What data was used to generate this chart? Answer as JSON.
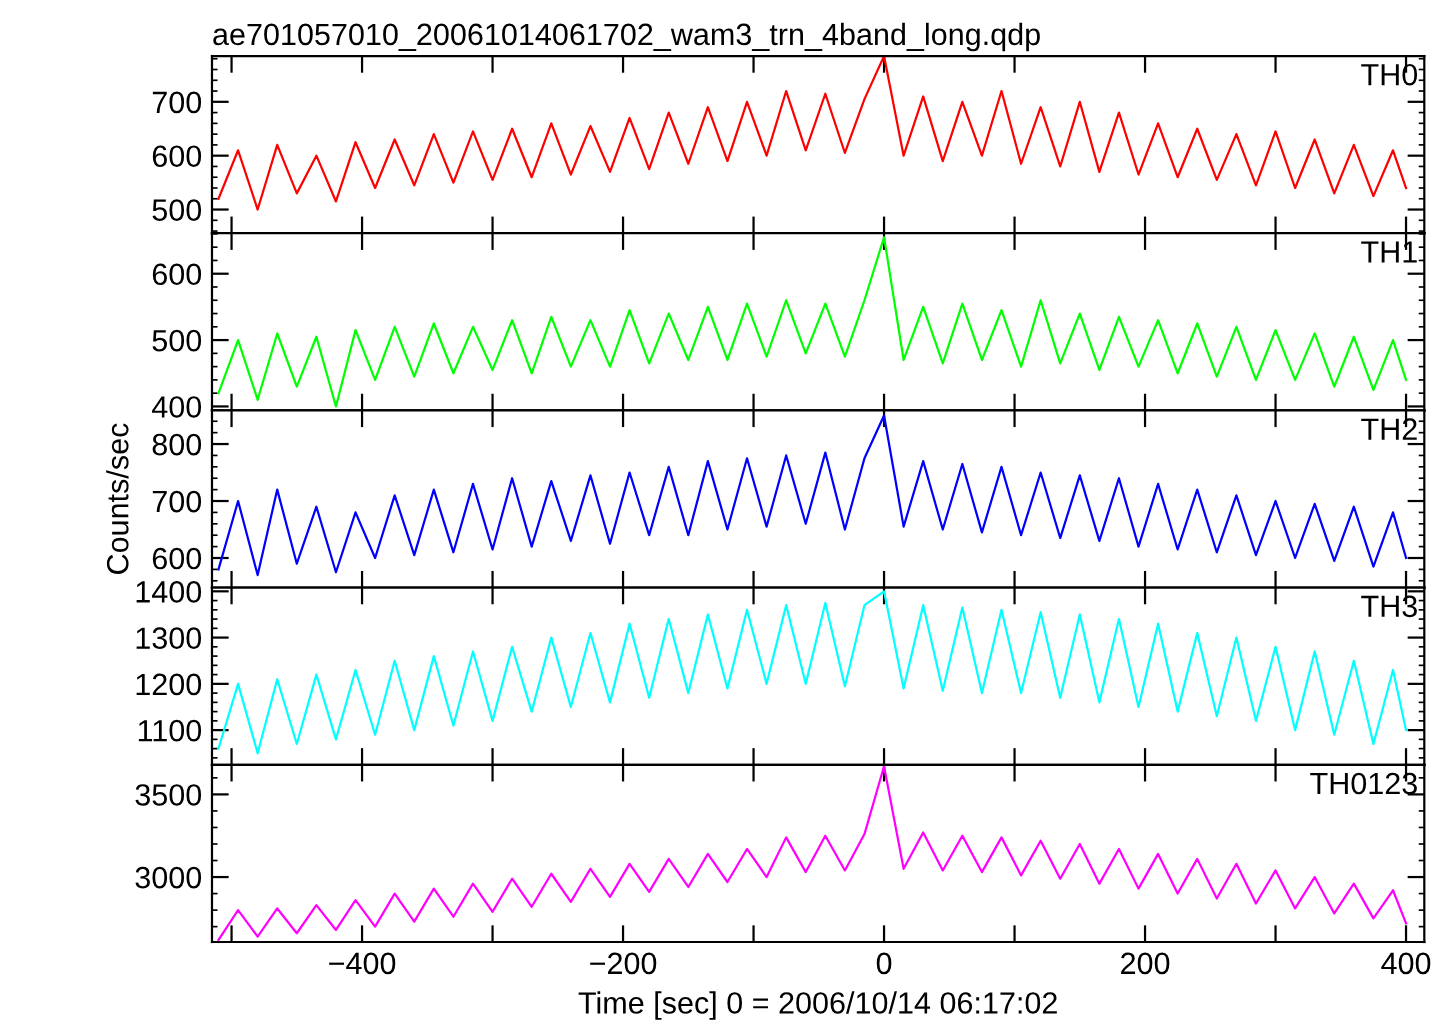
{
  "chart_data": [
    {
      "type": "line",
      "title": "ae701057010_20061014061702_wam3_trn_4band_long.qdp",
      "x": [
        -510,
        -495,
        -480,
        -465,
        -450,
        -435,
        -420,
        -405,
        -390,
        -375,
        -360,
        -345,
        -330,
        -315,
        -300,
        -285,
        -270,
        -255,
        -240,
        -225,
        -210,
        -195,
        -180,
        -165,
        -150,
        -135,
        -120,
        -105,
        -90,
        -75,
        -60,
        -45,
        -30,
        -15,
        0,
        15,
        30,
        45,
        60,
        75,
        90,
        105,
        120,
        135,
        150,
        165,
        180,
        195,
        210,
        225,
        240,
        255,
        270,
        285,
        300,
        315,
        330,
        345,
        360,
        375,
        390,
        400
      ],
      "xlim": [
        -515,
        414
      ],
      "xticks": [
        {
          "value": -500,
          "label": null
        },
        {
          "value": -400,
          "label": null
        },
        {
          "value": -300,
          "label": null
        },
        {
          "value": -200,
          "label": null
        },
        {
          "value": -100,
          "label": null
        },
        {
          "value": 0,
          "label": null
        },
        {
          "value": 100,
          "label": null
        },
        {
          "value": 200,
          "label": null
        },
        {
          "value": 300,
          "label": null
        },
        {
          "value": 400,
          "label": null
        }
      ],
      "ylim": [
        456,
        785
      ],
      "yticks": [
        500,
        600,
        700
      ],
      "tick_labels": "y",
      "grid": false,
      "legend": false,
      "series": [
        {
          "name": "TH0",
          "color": "#ff0000",
          "values": [
            520,
            610,
            500,
            620,
            530,
            600,
            515,
            625,
            540,
            630,
            545,
            640,
            550,
            645,
            555,
            650,
            560,
            660,
            565,
            655,
            570,
            670,
            575,
            680,
            585,
            690,
            590,
            700,
            600,
            720,
            610,
            715,
            605,
            705,
            785,
            600,
            710,
            590,
            700,
            600,
            720,
            585,
            690,
            580,
            700,
            570,
            680,
            565,
            660,
            560,
            650,
            555,
            640,
            545,
            645,
            540,
            630,
            530,
            620,
            525,
            610,
            540
          ]
        }
      ]
    },
    {
      "type": "line",
      "x": [
        -510,
        -495,
        -480,
        -465,
        -450,
        -435,
        -420,
        -405,
        -390,
        -375,
        -360,
        -345,
        -330,
        -315,
        -300,
        -285,
        -270,
        -255,
        -240,
        -225,
        -210,
        -195,
        -180,
        -165,
        -150,
        -135,
        -120,
        -105,
        -90,
        -75,
        -60,
        -45,
        -30,
        -15,
        0,
        15,
        30,
        45,
        60,
        75,
        90,
        105,
        120,
        135,
        150,
        165,
        180,
        195,
        210,
        225,
        240,
        255,
        270,
        285,
        300,
        315,
        330,
        345,
        360,
        375,
        390,
        400
      ],
      "xlim": [
        -515,
        414
      ],
      "xticks": [
        {
          "value": -500,
          "label": null
        },
        {
          "value": -400,
          "label": null
        },
        {
          "value": -300,
          "label": null
        },
        {
          "value": -200,
          "label": null
        },
        {
          "value": -100,
          "label": null
        },
        {
          "value": 0,
          "label": null
        },
        {
          "value": 100,
          "label": null
        },
        {
          "value": 200,
          "label": null
        },
        {
          "value": 300,
          "label": null
        },
        {
          "value": 400,
          "label": null
        }
      ],
      "ylim": [
        394,
        661
      ],
      "yticks": [
        400,
        500,
        600
      ],
      "tick_labels": "y",
      "grid": false,
      "legend": false,
      "series": [
        {
          "name": "TH1",
          "color": "#00ff00",
          "values": [
            420,
            500,
            410,
            510,
            430,
            505,
            400,
            515,
            440,
            520,
            445,
            525,
            450,
            520,
            455,
            530,
            450,
            535,
            460,
            530,
            460,
            545,
            465,
            540,
            470,
            550,
            470,
            555,
            475,
            560,
            480,
            555,
            475,
            560,
            655,
            470,
            550,
            465,
            555,
            470,
            545,
            460,
            560,
            465,
            540,
            455,
            535,
            460,
            530,
            450,
            525,
            445,
            520,
            440,
            515,
            440,
            510,
            430,
            505,
            425,
            500,
            440
          ]
        }
      ]
    },
    {
      "type": "line",
      "ylabel": "Counts/sec",
      "x": [
        -510,
        -495,
        -480,
        -465,
        -450,
        -435,
        -420,
        -405,
        -390,
        -375,
        -360,
        -345,
        -330,
        -315,
        -300,
        -285,
        -270,
        -255,
        -240,
        -225,
        -210,
        -195,
        -180,
        -165,
        -150,
        -135,
        -120,
        -105,
        -90,
        -75,
        -60,
        -45,
        -30,
        -15,
        0,
        15,
        30,
        45,
        60,
        75,
        90,
        105,
        120,
        135,
        150,
        165,
        180,
        195,
        210,
        225,
        240,
        255,
        270,
        285,
        300,
        315,
        330,
        345,
        360,
        375,
        390,
        400
      ],
      "xlim": [
        -515,
        414
      ],
      "xticks": [
        {
          "value": -500,
          "label": null
        },
        {
          "value": -400,
          "label": null
        },
        {
          "value": -300,
          "label": null
        },
        {
          "value": -200,
          "label": null
        },
        {
          "value": -100,
          "label": null
        },
        {
          "value": 0,
          "label": null
        },
        {
          "value": 100,
          "label": null
        },
        {
          "value": 200,
          "label": null
        },
        {
          "value": 300,
          "label": null
        },
        {
          "value": 400,
          "label": null
        }
      ],
      "ylim": [
        548,
        859
      ],
      "yticks": [
        600,
        700,
        800
      ],
      "tick_labels": "y",
      "grid": false,
      "legend": false,
      "series": [
        {
          "name": "TH2",
          "color": "#0000ff",
          "values": [
            580,
            700,
            570,
            720,
            590,
            690,
            575,
            680,
            600,
            710,
            605,
            720,
            610,
            730,
            615,
            740,
            620,
            735,
            630,
            745,
            625,
            750,
            640,
            760,
            640,
            770,
            650,
            775,
            655,
            780,
            660,
            785,
            650,
            775,
            850,
            655,
            770,
            650,
            765,
            645,
            760,
            640,
            750,
            635,
            745,
            630,
            740,
            620,
            730,
            615,
            720,
            610,
            710,
            605,
            700,
            600,
            695,
            595,
            690,
            585,
            680,
            600
          ]
        }
      ]
    },
    {
      "type": "line",
      "x": [
        -510,
        -495,
        -480,
        -465,
        -450,
        -435,
        -420,
        -405,
        -390,
        -375,
        -360,
        -345,
        -330,
        -315,
        -300,
        -285,
        -270,
        -255,
        -240,
        -225,
        -210,
        -195,
        -180,
        -165,
        -150,
        -135,
        -120,
        -105,
        -90,
        -75,
        -60,
        -45,
        -30,
        -15,
        0,
        15,
        30,
        45,
        60,
        75,
        90,
        105,
        120,
        135,
        150,
        165,
        180,
        195,
        210,
        225,
        240,
        255,
        270,
        285,
        300,
        315,
        330,
        345,
        360,
        375,
        390,
        400
      ],
      "xlim": [
        -515,
        414
      ],
      "xticks": [
        {
          "value": -500,
          "label": null
        },
        {
          "value": -400,
          "label": null
        },
        {
          "value": -300,
          "label": null
        },
        {
          "value": -200,
          "label": null
        },
        {
          "value": -100,
          "label": null
        },
        {
          "value": 0,
          "label": null
        },
        {
          "value": 100,
          "label": null
        },
        {
          "value": 200,
          "label": null
        },
        {
          "value": 300,
          "label": null
        },
        {
          "value": 400,
          "label": null
        }
      ],
      "ylim": [
        1025,
        1408
      ],
      "yticks": [
        1100,
        1200,
        1300,
        1400
      ],
      "tick_labels": "y",
      "grid": false,
      "legend": false,
      "series": [
        {
          "name": "TH3",
          "color": "#00ffff",
          "values": [
            1060,
            1200,
            1050,
            1210,
            1070,
            1220,
            1080,
            1230,
            1090,
            1250,
            1100,
            1260,
            1110,
            1270,
            1120,
            1280,
            1140,
            1300,
            1150,
            1310,
            1160,
            1330,
            1170,
            1340,
            1180,
            1350,
            1190,
            1360,
            1200,
            1370,
            1200,
            1375,
            1195,
            1370,
            1400,
            1190,
            1370,
            1185,
            1365,
            1180,
            1360,
            1180,
            1355,
            1170,
            1350,
            1160,
            1340,
            1150,
            1330,
            1140,
            1310,
            1130,
            1300,
            1120,
            1280,
            1100,
            1270,
            1090,
            1250,
            1070,
            1230,
            1100
          ]
        }
      ]
    },
    {
      "type": "line",
      "xlabel": "Time [sec] 0 = 2006/10/14 06:17:02",
      "x": [
        -510,
        -495,
        -480,
        -465,
        -450,
        -435,
        -420,
        -405,
        -390,
        -375,
        -360,
        -345,
        -330,
        -315,
        -300,
        -285,
        -270,
        -255,
        -240,
        -225,
        -210,
        -195,
        -180,
        -165,
        -150,
        -135,
        -120,
        -105,
        -90,
        -75,
        -60,
        -45,
        -30,
        -15,
        0,
        15,
        30,
        45,
        60,
        75,
        90,
        105,
        120,
        135,
        150,
        165,
        180,
        195,
        210,
        225,
        240,
        255,
        270,
        285,
        300,
        315,
        330,
        345,
        360,
        375,
        390,
        400
      ],
      "xlim": [
        -515,
        414
      ],
      "xticks": [
        {
          "value": -500,
          "label": null
        },
        {
          "value": -400,
          "label": "−400"
        },
        {
          "value": -300,
          "label": null
        },
        {
          "value": -200,
          "label": "−200"
        },
        {
          "value": -100,
          "label": null
        },
        0,
        {
          "value": 100,
          "label": null
        },
        200,
        {
          "value": 300,
          "label": null
        },
        400
      ],
      "ylim": [
        2607,
        3679
      ],
      "yticks": [
        3000,
        3500
      ],
      "grid": false,
      "legend": false,
      "series": [
        {
          "name": "TH0123",
          "color": "#ff00ff",
          "values": [
            2620,
            2800,
            2640,
            2810,
            2660,
            2830,
            2680,
            2860,
            2700,
            2900,
            2730,
            2930,
            2760,
            2960,
            2790,
            2990,
            2820,
            3020,
            2850,
            3050,
            2880,
            3080,
            2910,
            3110,
            2940,
            3140,
            2970,
            3170,
            3000,
            3240,
            3030,
            3250,
            3040,
            3260,
            3670,
            3050,
            3270,
            3040,
            3250,
            3030,
            3240,
            3010,
            3220,
            2990,
            3200,
            2960,
            3170,
            2930,
            3140,
            2900,
            3110,
            2870,
            3080,
            2840,
            3040,
            2810,
            3000,
            2780,
            2960,
            2750,
            2920,
            2720
          ]
        }
      ]
    }
  ]
}
